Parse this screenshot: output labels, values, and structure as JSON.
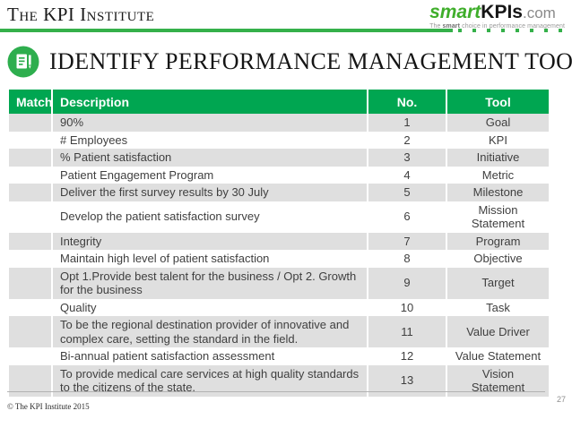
{
  "brand": {
    "name": "The KPI Institute"
  },
  "logo": {
    "smart": "smart",
    "kpis": "KPIs",
    "com": ".com",
    "tagline_pre": "The ",
    "tagline_bold": "smart",
    "tagline_post": " choice in performance management"
  },
  "title": {
    "text": "IDENTIFY PERFORMANCE MANAGEMENT TOOLS"
  },
  "table": {
    "columns": [
      "Match",
      "Description",
      "No.",
      "Tool"
    ],
    "rows": [
      {
        "match": "",
        "description": "90%",
        "no": "1",
        "tool": "Goal"
      },
      {
        "match": "",
        "description": "# Employees",
        "no": "2",
        "tool": "KPI"
      },
      {
        "match": "",
        "description": "% Patient satisfaction",
        "no": "3",
        "tool": "Initiative"
      },
      {
        "match": "",
        "description": "Patient Engagement  Program",
        "no": "4",
        "tool": "Metric"
      },
      {
        "match": "",
        "description": "Deliver the first survey results by 30 July",
        "no": "5",
        "tool": "Milestone"
      },
      {
        "match": "",
        "description": "Develop the patient satisfaction survey",
        "no": "6",
        "tool": "Mission Statement"
      },
      {
        "match": "",
        "description": "Integrity",
        "no": "7",
        "tool": "Program"
      },
      {
        "match": "",
        "description": "Maintain high level of patient satisfaction",
        "no": "8",
        "tool": "Objective"
      },
      {
        "match": "",
        "description": "Opt 1.Provide best talent for the business / Opt 2. Growth for the business",
        "no": "9",
        "tool": "Target"
      },
      {
        "match": "",
        "description": "Quality",
        "no": "10",
        "tool": "Task"
      },
      {
        "match": "",
        "description": "To be the regional destination provider of innovative and complex care, setting the standard in the field.",
        "no": "11",
        "tool": "Value Driver"
      },
      {
        "match": "",
        "description": "Bi-annual patient satisfaction assessment",
        "no": "12",
        "tool": "Value Statement"
      },
      {
        "match": "",
        "description": "To provide medical care services at high quality standards to the citizens of the state.",
        "no": "13",
        "tool": "Vision Statement"
      }
    ]
  },
  "footer": {
    "copyright": "© The KPI Institute 2015",
    "page_number": "27"
  },
  "colors": {
    "table_header_green": "#00a651",
    "rule_green": "#35b04a",
    "logo_green": "#3fae2b",
    "row_gray": "#dfdfdf",
    "body_text": "#3f3f3f"
  }
}
